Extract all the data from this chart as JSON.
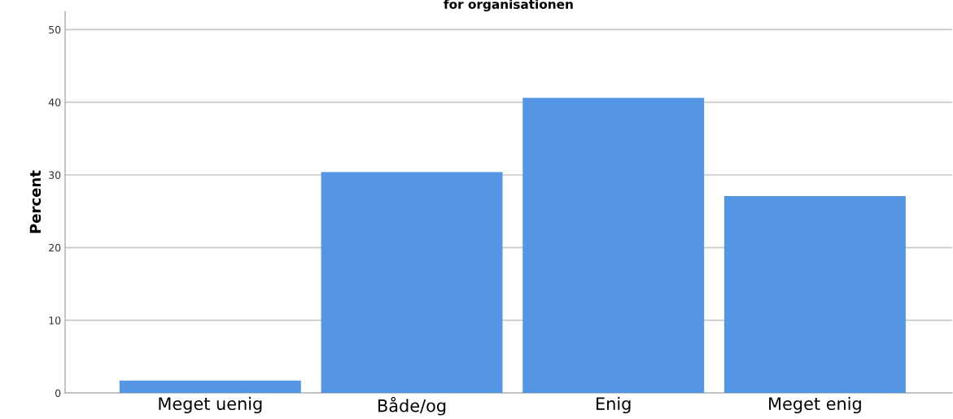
{
  "chart_data": {
    "type": "bar",
    "title": "for organisationen",
    "ylabel": "Percent",
    "categories": [
      "Meget uenig",
      "Både/og",
      "Enig",
      "Meget enig"
    ],
    "values": [
      1.7,
      30.4,
      40.6,
      27.1
    ],
    "color": "#5596e4",
    "ylim": [
      0,
      52.5
    ],
    "yticks": [
      0,
      10,
      20,
      30,
      40,
      50
    ],
    "grid": "y",
    "legend": false
  }
}
